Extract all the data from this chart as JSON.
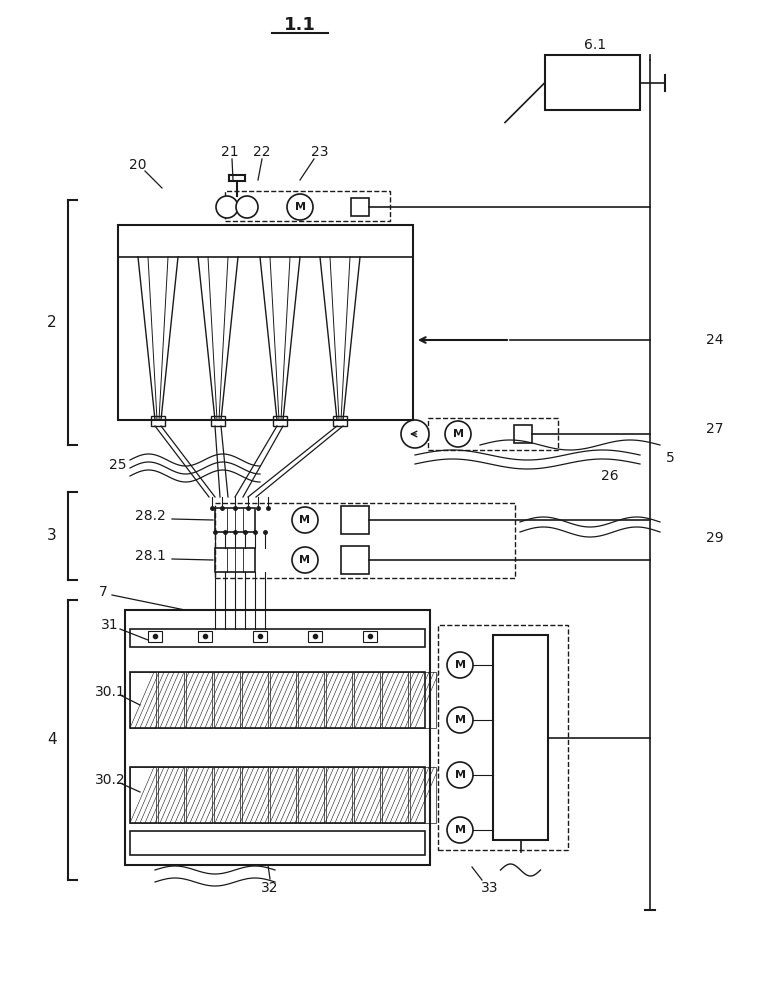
{
  "bg_color": "#ffffff",
  "line_color": "#1a1a1a",
  "labels": {
    "title": "1.1",
    "num_20": "20",
    "num_21": "21",
    "num_22": "22",
    "num_23": "23",
    "num_24": "24",
    "num_25": "25",
    "num_26": "26",
    "num_27": "27",
    "num_2": "2",
    "num_3": "3",
    "num_4": "4",
    "num_5": "5",
    "num_6_1": "6.1",
    "num_7": "7",
    "num_28_1": "28.1",
    "num_28_2": "28.2",
    "num_29": "29",
    "num_30_1": "30.1",
    "num_30_2": "30.2",
    "num_31": "31",
    "num_32": "32",
    "num_33": "33"
  }
}
